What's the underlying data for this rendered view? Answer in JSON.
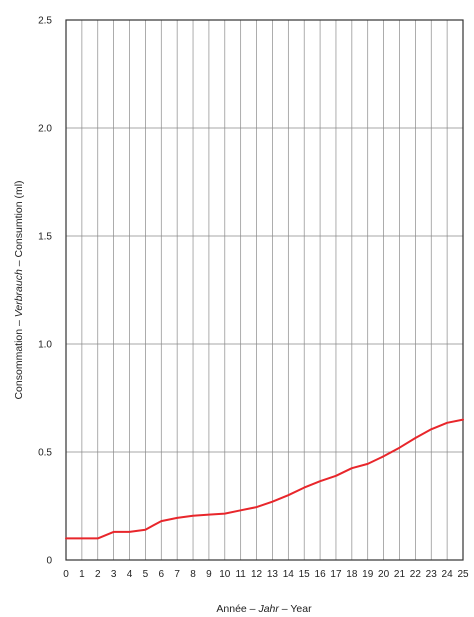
{
  "chart_data": {
    "type": "line",
    "xlabel": {
      "part1": "Année – ",
      "part2": "Jahr",
      "part3": " – Year"
    },
    "ylabel": {
      "part1": "Consommation – ",
      "part2": "Verbrauch",
      "part3": " – Consumtion (ml)"
    },
    "xlim": [
      0,
      25
    ],
    "ylim": [
      0,
      2.5
    ],
    "x_ticks": [
      0,
      1,
      2,
      3,
      4,
      5,
      6,
      7,
      8,
      9,
      10,
      11,
      12,
      13,
      14,
      15,
      16,
      17,
      18,
      19,
      20,
      21,
      22,
      23,
      24,
      25
    ],
    "y_ticks": [
      {
        "value": 0,
        "label": "0"
      },
      {
        "value": 0.5,
        "label": "0.5"
      },
      {
        "value": 1.0,
        "label": "1.0"
      },
      {
        "value": 1.5,
        "label": "1.5"
      },
      {
        "value": 2.0,
        "label": "2.0"
      },
      {
        "value": 2.5,
        "label": "2.5"
      }
    ],
    "grid": true,
    "legend": "none",
    "series": [
      {
        "color": "#e8262b",
        "x": [
          0,
          1,
          2,
          3,
          4,
          5,
          5.5,
          6,
          7,
          8,
          9,
          10,
          11,
          12,
          13,
          14,
          15,
          16,
          17,
          18,
          19,
          20,
          21,
          22,
          23,
          24,
          25
        ],
        "y": [
          0.1,
          0.1,
          0.1,
          0.13,
          0.13,
          0.14,
          0.16,
          0.18,
          0.195,
          0.205,
          0.21,
          0.215,
          0.23,
          0.245,
          0.27,
          0.3,
          0.335,
          0.365,
          0.39,
          0.425,
          0.445,
          0.48,
          0.52,
          0.565,
          0.605,
          0.635,
          0.65
        ]
      }
    ]
  }
}
